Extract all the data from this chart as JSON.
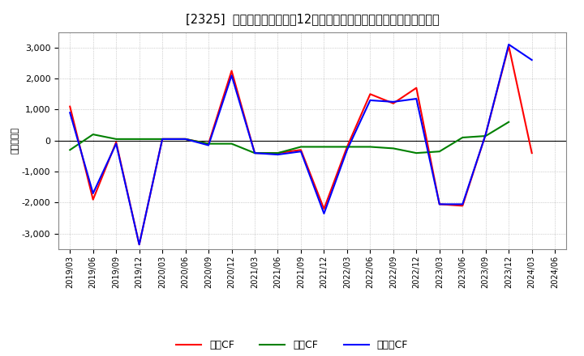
{
  "title": "[2325]  キャッシュフローの12か月移動合計の対前年同期増減額の推移",
  "ylabel": "（百万円）",
  "background_color": "#ffffff",
  "plot_bg_color": "#ffffff",
  "grid_color": "#aaaaaa",
  "xlabels": [
    "2019/03",
    "2019/06",
    "2019/09",
    "2019/12",
    "2020/03",
    "2020/06",
    "2020/09",
    "2020/12",
    "2021/03",
    "2021/06",
    "2021/09",
    "2021/12",
    "2022/03",
    "2022/06",
    "2022/09",
    "2022/12",
    "2023/03",
    "2023/06",
    "2023/09",
    "2023/12",
    "2024/03",
    "2024/06"
  ],
  "eigyo_cf": [
    1100,
    -1900,
    -50,
    -3350,
    50,
    50,
    -100,
    2250,
    -400,
    -400,
    -300,
    -2200,
    -200,
    1500,
    1200,
    1700,
    -2050,
    -2100,
    200,
    3050,
    -400,
    null
  ],
  "toshi_cf": [
    -300,
    200,
    50,
    50,
    50,
    50,
    -100,
    -100,
    -400,
    -400,
    -200,
    -200,
    -200,
    -200,
    -250,
    -400,
    -350,
    100,
    150,
    600,
    null,
    null
  ],
  "free_cf": [
    900,
    -1700,
    -100,
    -3350,
    50,
    50,
    -150,
    2100,
    -400,
    -450,
    -350,
    -2350,
    -300,
    1300,
    1250,
    1350,
    -2050,
    -2050,
    200,
    3100,
    2600,
    null
  ],
  "eigyo_color": "#ff0000",
  "toshi_color": "#008000",
  "free_color": "#0000ff",
  "ylim": [
    -3500,
    3500
  ],
  "yticks": [
    -3000,
    -2000,
    -1000,
    0,
    1000,
    2000,
    3000
  ],
  "legend_labels": [
    "営業CF",
    "投資CF",
    "フリーCF"
  ]
}
